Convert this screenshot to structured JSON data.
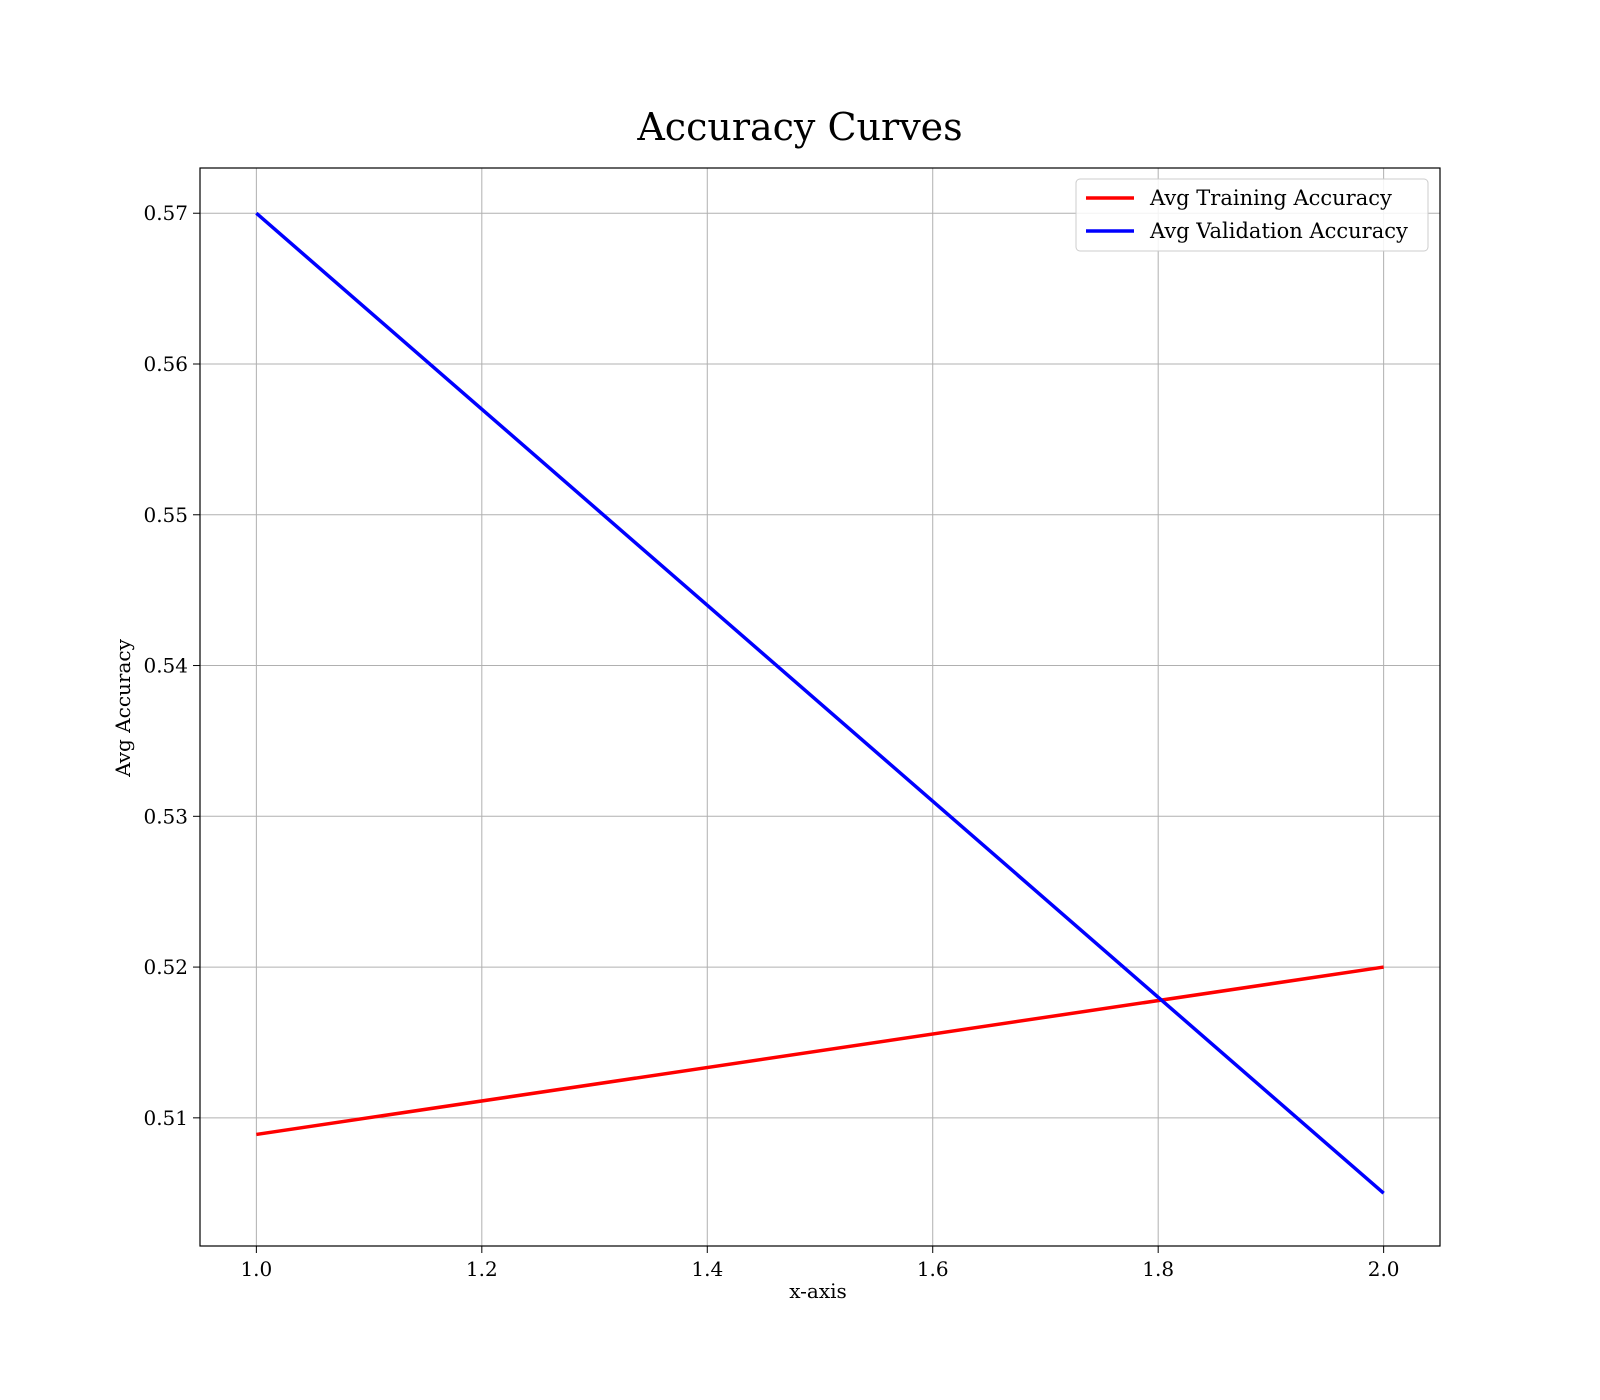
{
  "chart_data": {
    "type": "line",
    "title": "Accuracy Curves",
    "xlabel": "x-axis",
    "ylabel": "Avg Accuracy",
    "xlim": [
      0.95,
      2.05
    ],
    "ylim": [
      0.5015,
      0.573
    ],
    "x_ticks": [
      1.0,
      1.2,
      1.4,
      1.6,
      1.8,
      2.0
    ],
    "x_tick_labels": [
      "1.0",
      "1.2",
      "1.4",
      "1.6",
      "1.8",
      "2.0"
    ],
    "y_ticks": [
      0.51,
      0.52,
      0.53,
      0.54,
      0.55,
      0.56,
      0.57
    ],
    "y_tick_labels": [
      "0.51",
      "0.52",
      "0.53",
      "0.54",
      "0.55",
      "0.56",
      "0.57"
    ],
    "grid": true,
    "legend_position": "top-right",
    "series": [
      {
        "name": "Avg Training Accuracy",
        "color": "#ff0000",
        "x": [
          1.0,
          2.0
        ],
        "y": [
          0.5089,
          0.52
        ]
      },
      {
        "name": "Avg Validation Accuracy",
        "color": "#0000ff",
        "x": [
          1.0,
          2.0
        ],
        "y": [
          0.57,
          0.505
        ]
      }
    ]
  }
}
